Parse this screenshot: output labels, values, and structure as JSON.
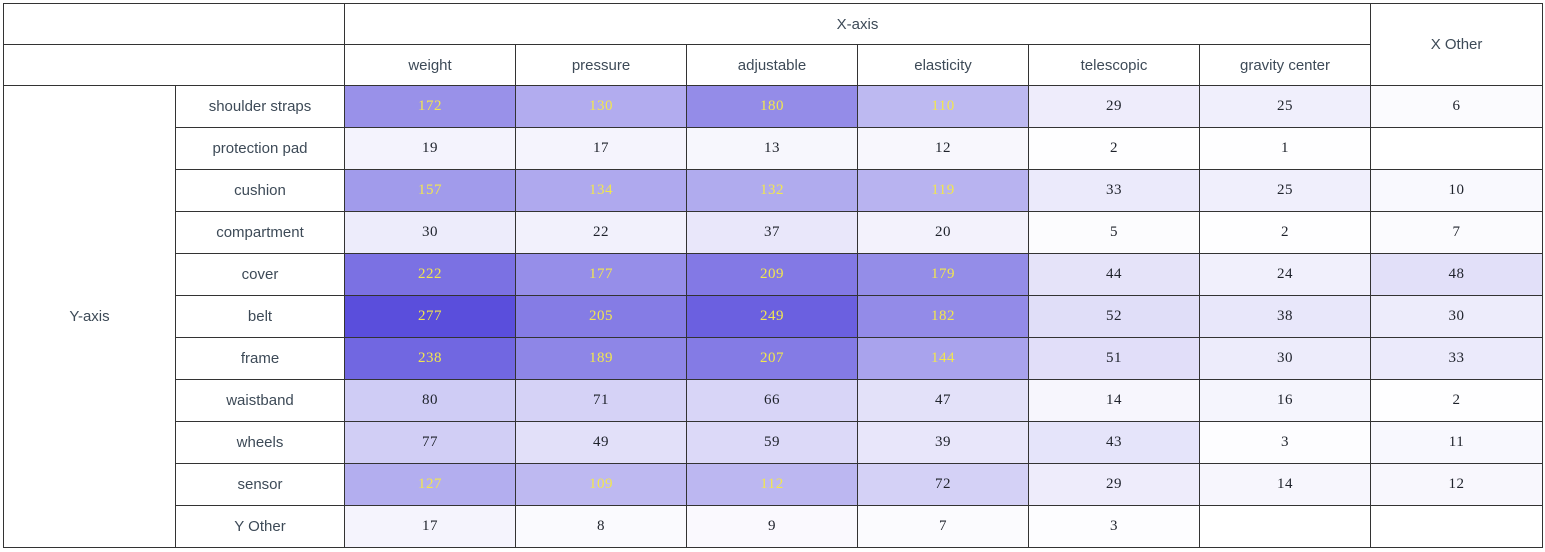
{
  "chart_data": {
    "type": "heatmap",
    "x_axis_title": "X-axis",
    "y_axis_title": "Y-axis",
    "columns": [
      "weight",
      "pressure",
      "adjustable",
      "elasticity",
      "telescopic",
      "gravity center",
      "X Other"
    ],
    "rows": [
      "shoulder straps",
      "protection pad",
      "cushion",
      "compartment",
      "cover",
      "belt",
      "frame",
      "waistband",
      "wheels",
      "sensor",
      "Y Other"
    ],
    "values": [
      [
        172,
        130,
        180,
        110,
        29,
        25,
        6
      ],
      [
        19,
        17,
        13,
        12,
        2,
        1,
        null
      ],
      [
        157,
        134,
        132,
        119,
        33,
        25,
        10
      ],
      [
        30,
        22,
        37,
        20,
        5,
        2,
        7
      ],
      [
        222,
        177,
        209,
        179,
        44,
        24,
        48
      ],
      [
        277,
        205,
        249,
        182,
        52,
        38,
        30
      ],
      [
        238,
        189,
        207,
        144,
        51,
        30,
        33
      ],
      [
        80,
        71,
        66,
        47,
        14,
        16,
        2
      ],
      [
        77,
        49,
        59,
        39,
        43,
        3,
        11
      ],
      [
        127,
        109,
        112,
        72,
        29,
        14,
        12
      ],
      [
        17,
        8,
        9,
        7,
        3,
        null,
        null
      ]
    ],
    "value_min": 0,
    "value_max": 277,
    "grid": true,
    "legend": "none",
    "colors": {
      "scale_min": "#FFFFFF",
      "scale_max": "#5A4EDC",
      "cell_text_dark": "#1E222B",
      "cell_text_light": "#F2E74D",
      "light_text_threshold": 100,
      "header_text": "#3D4A57",
      "border": "#333333"
    }
  }
}
